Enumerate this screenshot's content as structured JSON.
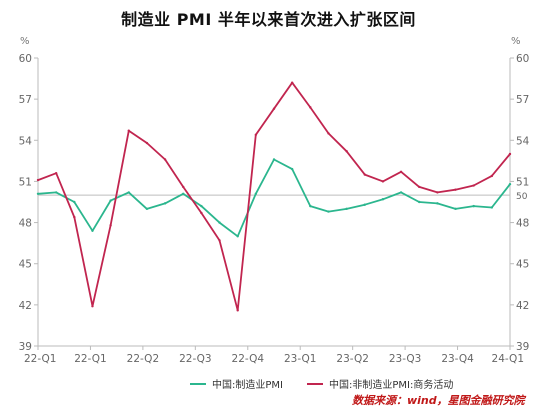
{
  "title": "制造业 PMI 半年以来首次进入扩张区间",
  "unit_left": "%",
  "unit_right": "%",
  "source": "数据来源：wind，星图金融研究院",
  "colors": {
    "manufacturing": "#2bb68e",
    "non_manufacturing": "#c1254f",
    "reference_line": "#bdbdbd",
    "axis": "#bbbbbb"
  },
  "chart_data": {
    "type": "line",
    "ylim": [
      39,
      60
    ],
    "yticks": [
      39,
      42,
      45,
      48,
      51,
      54,
      57,
      60
    ],
    "right_extra_tick": 50,
    "x_tick_labels": [
      "22-Q1",
      "22-Q1",
      "22-Q2",
      "22-Q3",
      "22-Q4",
      "23-Q1",
      "23-Q2",
      "23-Q3",
      "23-Q4",
      "24-Q1"
    ],
    "x": [
      "2022-01",
      "2022-02",
      "2022-03",
      "2022-04",
      "2022-05",
      "2022-06",
      "2022-07",
      "2022-08",
      "2022-09",
      "2022-10",
      "2022-11",
      "2022-12",
      "2023-01",
      "2023-02",
      "2023-03",
      "2023-04",
      "2023-05",
      "2023-06",
      "2023-07",
      "2023-08",
      "2023-09",
      "2023-10",
      "2023-11",
      "2023-12",
      "2024-01",
      "2024-02",
      "2024-03"
    ],
    "reference_value": 50,
    "series": [
      {
        "name": "中国:制造业PMI",
        "color_key": "manufacturing",
        "values": [
          50.1,
          50.2,
          49.5,
          47.4,
          49.6,
          50.2,
          49.0,
          49.4,
          50.1,
          49.2,
          48.0,
          47.0,
          50.1,
          52.6,
          51.9,
          49.2,
          48.8,
          49.0,
          49.3,
          49.7,
          50.2,
          49.5,
          49.4,
          49.0,
          49.2,
          49.1,
          50.8
        ]
      },
      {
        "name": "中国:非制造业PMI:商务活动",
        "color_key": "non_manufacturing",
        "values": [
          51.1,
          51.6,
          48.4,
          41.9,
          47.8,
          54.7,
          53.8,
          52.6,
          50.6,
          48.7,
          46.7,
          41.6,
          54.4,
          56.3,
          58.2,
          56.4,
          54.5,
          53.2,
          51.5,
          51.0,
          51.7,
          50.6,
          50.2,
          50.4,
          50.7,
          51.4,
          53.0
        ]
      }
    ]
  }
}
